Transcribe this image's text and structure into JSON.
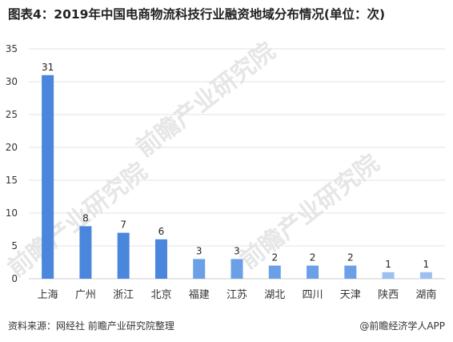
{
  "title": "图表4：2019年中国电商物流科技行业融资地域分布情况(单位：次)",
  "source": "资料来源：网经社 前瞻产业研究院整理",
  "brand": "@前瞻经济学人APP",
  "watermark": "前瞻产业研究院",
  "colors": {
    "bar_dark": "#4a86dc",
    "bar_mid": "#6b9fe6",
    "bar_light": "#9cc0f1",
    "grid": "#e3e3e3",
    "axis_text": "#333333"
  },
  "chart_data": {
    "type": "bar",
    "title": "图表4：2019年中国电商物流科技行业融资地域分布情况(单位：次)",
    "xlabel": "",
    "ylabel": "",
    "categories": [
      "上海",
      "广州",
      "浙江",
      "北京",
      "福建",
      "江苏",
      "湖北",
      "四川",
      "天津",
      "陕西",
      "湖南"
    ],
    "values": [
      31,
      8,
      7,
      6,
      3,
      3,
      2,
      2,
      2,
      1,
      1
    ],
    "ylim": [
      0,
      35
    ],
    "yticks": [
      0,
      5,
      10,
      15,
      20,
      25,
      30,
      35
    ],
    "grid": true,
    "data_labels": true
  }
}
